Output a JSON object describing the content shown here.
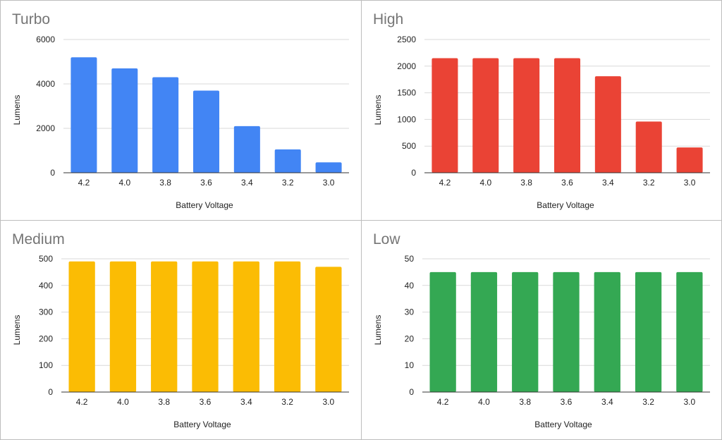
{
  "chart_data": [
    {
      "type": "bar",
      "title": "Turbo",
      "xlabel": "Battery Voltage",
      "ylabel": "Lumens",
      "categories": [
        "4.2",
        "4.0",
        "3.8",
        "3.6",
        "3.4",
        "3.2",
        "3.0"
      ],
      "values": [
        5200,
        4700,
        4300,
        3700,
        2100,
        1050,
        470
      ],
      "yticks": [
        0,
        2000,
        4000,
        6000
      ],
      "ylim": [
        0,
        6000
      ],
      "color": "#4285f4",
      "grid": true
    },
    {
      "type": "bar",
      "title": "High",
      "xlabel": "Battery Voltage",
      "ylabel": "Lumens",
      "categories": [
        "4.2",
        "4.0",
        "3.8",
        "3.6",
        "3.4",
        "3.2",
        "3.0"
      ],
      "values": [
        2150,
        2150,
        2150,
        2150,
        1810,
        960,
        475
      ],
      "yticks": [
        0,
        500,
        1000,
        1500,
        2000,
        2500
      ],
      "ylim": [
        0,
        2500
      ],
      "color": "#ea4335",
      "grid": true
    },
    {
      "type": "bar",
      "title": "Medium",
      "xlabel": "Battery Voltage",
      "ylabel": "Lumens",
      "categories": [
        "4.2",
        "4.0",
        "3.8",
        "3.6",
        "3.4",
        "3.2",
        "3.0"
      ],
      "values": [
        490,
        490,
        490,
        490,
        490,
        490,
        470
      ],
      "yticks": [
        0,
        100,
        200,
        300,
        400,
        500
      ],
      "ylim": [
        0,
        500
      ],
      "color": "#fbbc04",
      "grid": true
    },
    {
      "type": "bar",
      "title": "Low",
      "xlabel": "Battery Voltage",
      "ylabel": "Lumens",
      "categories": [
        "4.2",
        "4.0",
        "3.8",
        "3.6",
        "3.4",
        "3.2",
        "3.0"
      ],
      "values": [
        45,
        45,
        45,
        45,
        45,
        45,
        45
      ],
      "yticks": [
        0,
        10,
        20,
        30,
        40,
        50
      ],
      "ylim": [
        0,
        50
      ],
      "color": "#34a853",
      "grid": true
    }
  ]
}
